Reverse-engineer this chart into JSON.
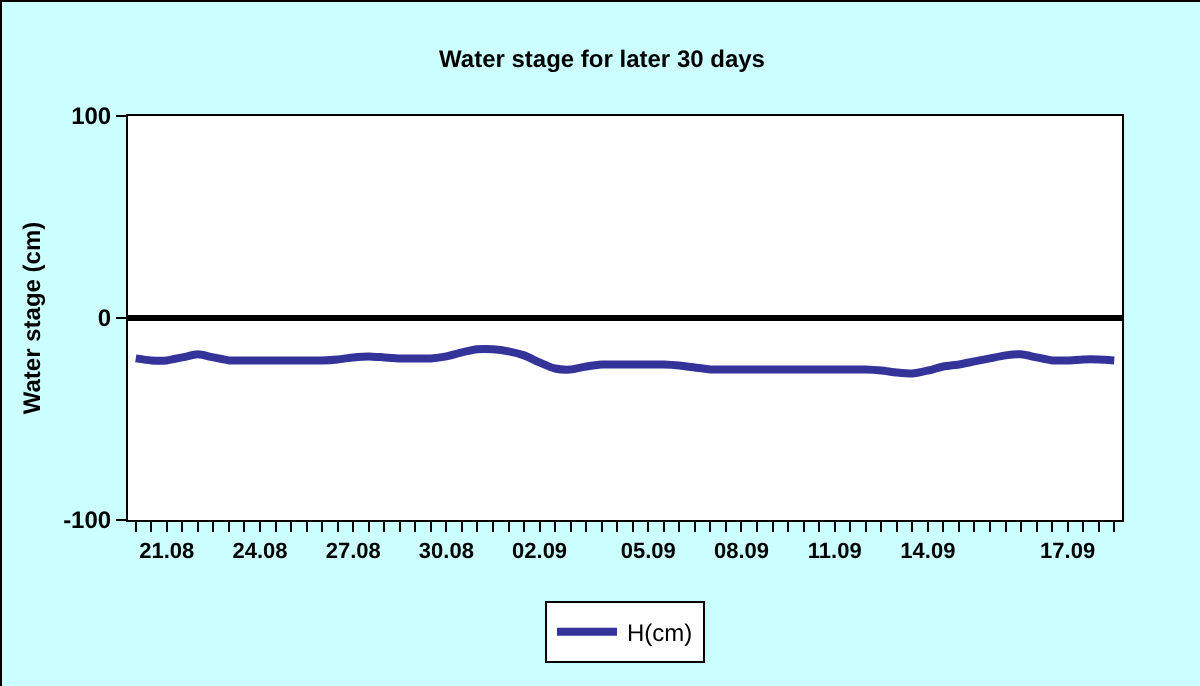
{
  "chart_data": {
    "type": "line",
    "title": "Water stage for later 30 days",
    "ylabel": "Water stage (cm)",
    "categories": [
      null,
      null,
      "21.08",
      null,
      null,
      null,
      null,
      null,
      "24.08",
      null,
      null,
      null,
      null,
      null,
      "27.08",
      null,
      null,
      null,
      null,
      null,
      "30.08",
      null,
      null,
      null,
      null,
      null,
      "02.09",
      null,
      null,
      null,
      null,
      null,
      null,
      "05.09",
      null,
      null,
      null,
      null,
      null,
      "08.09",
      null,
      null,
      null,
      null,
      null,
      "11.09",
      null,
      null,
      null,
      null,
      null,
      "14.09",
      null,
      null,
      null,
      null,
      null,
      null,
      null,
      null,
      "17.09",
      null,
      null,
      null
    ],
    "series": [
      {
        "name": "H(cm)",
        "color": "#333399",
        "values": [
          -20,
          -21,
          -21,
          -19.5,
          -18,
          -19.5,
          -21,
          -21,
          -21,
          -21,
          -21,
          -21,
          -21,
          -20.5,
          -19.5,
          -19,
          -19.5,
          -20,
          -20,
          -20,
          -19,
          -17,
          -15.5,
          -15.5,
          -16.5,
          -18.5,
          -22,
          -25,
          -25.5,
          -24,
          -23,
          -23,
          -23,
          -23,
          -23,
          -23.5,
          -24.5,
          -25.5,
          -25.5,
          -25.5,
          -25.5,
          -25.5,
          -25.5,
          -25.5,
          -25.5,
          -25.5,
          -25.5,
          -25.5,
          -26,
          -27,
          -27.5,
          -26,
          -24,
          -23,
          -21.5,
          -20,
          -18.5,
          -18,
          -19.5,
          -21,
          -21,
          -20.5,
          -20.5,
          -21
        ]
      }
    ],
    "ylim": [
      -100,
      100
    ],
    "yticks": [
      -100,
      0,
      100
    ],
    "ref_lines": [
      {
        "axis": "y",
        "value": 0,
        "color": "#000000"
      }
    ],
    "grid": false,
    "legend": "bottom",
    "marker": "none",
    "line_style": "solid"
  }
}
